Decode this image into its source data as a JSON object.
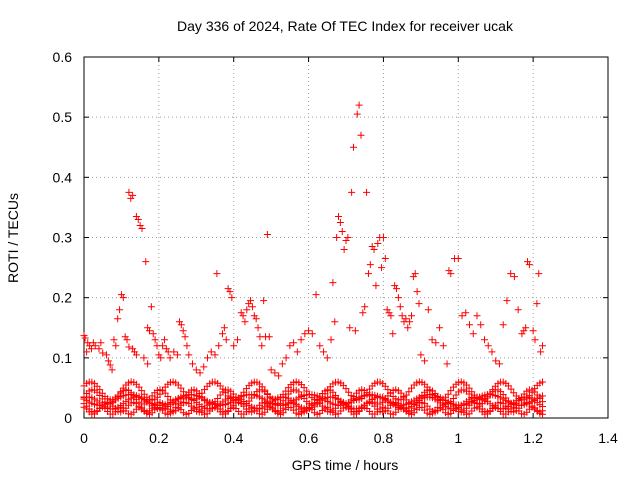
{
  "chart_data": {
    "type": "scatter",
    "title": "Day 336 of 2024, Rate Of TEC Index for receiver ucak",
    "xlabel": "GPS time / hours",
    "ylabel": "ROTI / TECUs",
    "xlim": [
      0,
      1.4
    ],
    "ylim": [
      0,
      0.6
    ],
    "x_ticks": [
      "0",
      "0.2",
      "0.4",
      "0.6",
      "0.8",
      "1",
      "1.2",
      "1.4"
    ],
    "y_ticks": [
      "0",
      "0.1",
      "0.2",
      "0.3",
      "0.4",
      "0.5",
      "0.6"
    ],
    "grid": true,
    "marker": "+",
    "marker_color": "#ff0000",
    "series": [
      {
        "points": [
          [
            0.0,
            0.137
          ],
          [
            0.003,
            0.133
          ],
          [
            0.007,
            0.11
          ],
          [
            0.01,
            0.125
          ],
          [
            0.015,
            0.12
          ],
          [
            0.02,
            0.115
          ],
          [
            0.025,
            0.125
          ],
          [
            0.03,
            0.12
          ],
          [
            0.04,
            0.115
          ],
          [
            0.045,
            0.125
          ],
          [
            0.05,
            0.108
          ],
          [
            0.06,
            0.105
          ],
          [
            0.065,
            0.095
          ],
          [
            0.07,
            0.088
          ],
          [
            0.075,
            0.08
          ],
          [
            0.08,
            0.13
          ],
          [
            0.085,
            0.12
          ],
          [
            0.09,
            0.165
          ],
          [
            0.095,
            0.18
          ],
          [
            0.1,
            0.205
          ],
          [
            0.105,
            0.2
          ],
          [
            0.11,
            0.135
          ],
          [
            0.115,
            0.13
          ],
          [
            0.12,
            0.118
          ],
          [
            0.12,
            0.375
          ],
          [
            0.125,
            0.365
          ],
          [
            0.13,
            0.37
          ],
          [
            0.13,
            0.115
          ],
          [
            0.135,
            0.11
          ],
          [
            0.14,
            0.105
          ],
          [
            0.14,
            0.335
          ],
          [
            0.145,
            0.33
          ],
          [
            0.15,
            0.32
          ],
          [
            0.155,
            0.315
          ],
          [
            0.16,
            0.1
          ],
          [
            0.165,
            0.26
          ],
          [
            0.17,
            0.09
          ],
          [
            0.17,
            0.15
          ],
          [
            0.175,
            0.145
          ],
          [
            0.18,
            0.185
          ],
          [
            0.185,
            0.14
          ],
          [
            0.19,
            0.13
          ],
          [
            0.195,
            0.12
          ],
          [
            0.2,
            0.105
          ],
          [
            0.205,
            0.1
          ],
          [
            0.21,
            0.12
          ],
          [
            0.215,
            0.13
          ],
          [
            0.22,
            0.115
          ],
          [
            0.225,
            0.11
          ],
          [
            0.23,
            0.1
          ],
          [
            0.24,
            0.11
          ],
          [
            0.25,
            0.105
          ],
          [
            0.255,
            0.16
          ],
          [
            0.26,
            0.155
          ],
          [
            0.265,
            0.145
          ],
          [
            0.27,
            0.135
          ],
          [
            0.275,
            0.12
          ],
          [
            0.28,
            0.105
          ],
          [
            0.29,
            0.09
          ],
          [
            0.3,
            0.08
          ],
          [
            0.31,
            0.075
          ],
          [
            0.32,
            0.085
          ],
          [
            0.33,
            0.1
          ],
          [
            0.34,
            0.11
          ],
          [
            0.35,
            0.105
          ],
          [
            0.355,
            0.24
          ],
          [
            0.36,
            0.12
          ],
          [
            0.37,
            0.14
          ],
          [
            0.375,
            0.15
          ],
          [
            0.38,
            0.13
          ],
          [
            0.385,
            0.215
          ],
          [
            0.39,
            0.21
          ],
          [
            0.395,
            0.2
          ],
          [
            0.4,
            0.12
          ],
          [
            0.41,
            0.13
          ],
          [
            0.42,
            0.175
          ],
          [
            0.425,
            0.17
          ],
          [
            0.43,
            0.16
          ],
          [
            0.435,
            0.18
          ],
          [
            0.44,
            0.19
          ],
          [
            0.445,
            0.195
          ],
          [
            0.45,
            0.185
          ],
          [
            0.455,
            0.17
          ],
          [
            0.46,
            0.165
          ],
          [
            0.465,
            0.15
          ],
          [
            0.47,
            0.135
          ],
          [
            0.475,
            0.12
          ],
          [
            0.48,
            0.195
          ],
          [
            0.485,
            0.135
          ],
          [
            0.49,
            0.305
          ],
          [
            0.495,
            0.135
          ],
          [
            0.5,
            0.08
          ],
          [
            0.51,
            0.075
          ],
          [
            0.52,
            0.07
          ],
          [
            0.53,
            0.09
          ],
          [
            0.54,
            0.1
          ],
          [
            0.55,
            0.12
          ],
          [
            0.56,
            0.125
          ],
          [
            0.57,
            0.11
          ],
          [
            0.58,
            0.13
          ],
          [
            0.59,
            0.14
          ],
          [
            0.6,
            0.145
          ],
          [
            0.61,
            0.14
          ],
          [
            0.62,
            0.205
          ],
          [
            0.63,
            0.12
          ],
          [
            0.64,
            0.11
          ],
          [
            0.65,
            0.1
          ],
          [
            0.66,
            0.13
          ],
          [
            0.665,
            0.225
          ],
          [
            0.67,
            0.16
          ],
          [
            0.675,
            0.3
          ],
          [
            0.68,
            0.335
          ],
          [
            0.685,
            0.325
          ],
          [
            0.69,
            0.31
          ],
          [
            0.695,
            0.28
          ],
          [
            0.7,
            0.295
          ],
          [
            0.705,
            0.3
          ],
          [
            0.71,
            0.15
          ],
          [
            0.715,
            0.375
          ],
          [
            0.72,
            0.45
          ],
          [
            0.725,
            0.145
          ],
          [
            0.73,
            0.505
          ],
          [
            0.735,
            0.52
          ],
          [
            0.74,
            0.47
          ],
          [
            0.745,
            0.175
          ],
          [
            0.75,
            0.185
          ],
          [
            0.755,
            0.375
          ],
          [
            0.76,
            0.24
          ],
          [
            0.765,
            0.255
          ],
          [
            0.77,
            0.285
          ],
          [
            0.775,
            0.28
          ],
          [
            0.78,
            0.22
          ],
          [
            0.785,
            0.29
          ],
          [
            0.79,
            0.3
          ],
          [
            0.795,
            0.25
          ],
          [
            0.8,
            0.3
          ],
          [
            0.805,
            0.265
          ],
          [
            0.81,
            0.18
          ],
          [
            0.815,
            0.175
          ],
          [
            0.82,
            0.17
          ],
          [
            0.825,
            0.14
          ],
          [
            0.83,
            0.22
          ],
          [
            0.835,
            0.215
          ],
          [
            0.84,
            0.2
          ],
          [
            0.845,
            0.185
          ],
          [
            0.85,
            0.17
          ],
          [
            0.855,
            0.16
          ],
          [
            0.86,
            0.165
          ],
          [
            0.865,
            0.15
          ],
          [
            0.87,
            0.16
          ],
          [
            0.875,
            0.17
          ],
          [
            0.88,
            0.235
          ],
          [
            0.885,
            0.24
          ],
          [
            0.89,
            0.21
          ],
          [
            0.895,
            0.19
          ],
          [
            0.9,
            0.105
          ],
          [
            0.91,
            0.095
          ],
          [
            0.92,
            0.18
          ],
          [
            0.93,
            0.13
          ],
          [
            0.94,
            0.125
          ],
          [
            0.95,
            0.15
          ],
          [
            0.96,
            0.12
          ],
          [
            0.97,
            0.09
          ],
          [
            0.975,
            0.245
          ],
          [
            0.98,
            0.24
          ],
          [
            0.99,
            0.265
          ],
          [
            1.0,
            0.265
          ],
          [
            1.01,
            0.17
          ],
          [
            1.02,
            0.175
          ],
          [
            1.03,
            0.155
          ],
          [
            1.04,
            0.14
          ],
          [
            1.05,
            0.17
          ],
          [
            1.06,
            0.155
          ],
          [
            1.07,
            0.13
          ],
          [
            1.08,
            0.12
          ],
          [
            1.09,
            0.11
          ],
          [
            1.1,
            0.095
          ],
          [
            1.11,
            0.09
          ],
          [
            1.12,
            0.155
          ],
          [
            1.13,
            0.195
          ],
          [
            1.14,
            0.24
          ],
          [
            1.15,
            0.235
          ],
          [
            1.16,
            0.18
          ],
          [
            1.17,
            0.14
          ],
          [
            1.175,
            0.145
          ],
          [
            1.18,
            0.15
          ],
          [
            1.185,
            0.26
          ],
          [
            1.19,
            0.255
          ],
          [
            1.2,
            0.145
          ],
          [
            1.205,
            0.13
          ],
          [
            1.21,
            0.19
          ],
          [
            1.215,
            0.24
          ],
          [
            1.22,
            0.11
          ],
          [
            1.225,
            0.12
          ]
        ]
      }
    ],
    "bands": [
      {
        "center": 0.035,
        "amp": 0.012,
        "period": 0.09,
        "phase": 0.0
      },
      {
        "center": 0.025,
        "amp": 0.01,
        "period": 0.13,
        "phase": 1.1
      },
      {
        "center": 0.018,
        "amp": 0.008,
        "period": 0.07,
        "phase": 2.3
      },
      {
        "center": 0.045,
        "amp": 0.015,
        "period": 0.11,
        "phase": 0.6
      },
      {
        "center": 0.012,
        "amp": 0.006,
        "period": 0.05,
        "phase": 1.7
      },
      {
        "center": 0.03,
        "amp": 0.009,
        "period": 0.16,
        "phase": 3.0
      }
    ],
    "band_x_range": [
      0.0,
      1.23
    ],
    "band_step": 0.007
  }
}
